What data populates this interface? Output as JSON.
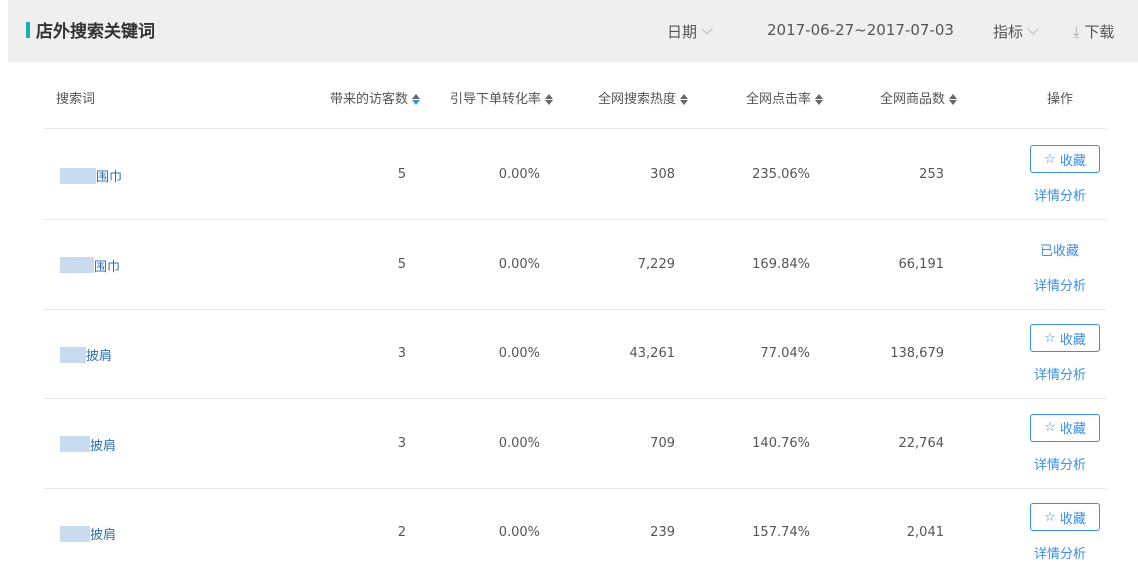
{
  "header": {
    "title": "店外搜索关键词",
    "date_label": "日期",
    "date_range": "2017-06-27~2017-07-03",
    "metric_label": "指标",
    "download_label": "下载"
  },
  "columns": [
    "搜索词",
    "带来的访客数",
    "引导下单转化率",
    "全网搜索热度",
    "全网点击率",
    "全网商品数",
    "操作"
  ],
  "colors": {
    "accent": "#1ab0b0",
    "link": "#3a8ee6"
  },
  "rows": [
    {
      "keyword": "围巾",
      "visitors": "5",
      "conversion": "0.00%",
      "heat": "308",
      "ctr": "235.06%",
      "items": "253",
      "favorited": false
    },
    {
      "keyword": "围巾",
      "visitors": "5",
      "conversion": "0.00%",
      "heat": "7,229",
      "ctr": "169.84%",
      "items": "66,191",
      "favorited": true
    },
    {
      "keyword": "披肩",
      "visitors": "3",
      "conversion": "0.00%",
      "heat": "43,261",
      "ctr": "77.04%",
      "items": "138,679",
      "favorited": false
    },
    {
      "keyword": "披肩",
      "visitors": "3",
      "conversion": "0.00%",
      "heat": "709",
      "ctr": "140.76%",
      "items": "22,764",
      "favorited": false
    },
    {
      "keyword": "披肩",
      "visitors": "2",
      "conversion": "0.00%",
      "heat": "239",
      "ctr": "157.74%",
      "items": "2,041",
      "favorited": false
    }
  ],
  "actions": {
    "favorite": "收藏",
    "favorited": "已收藏",
    "detail": "详情分析"
  }
}
